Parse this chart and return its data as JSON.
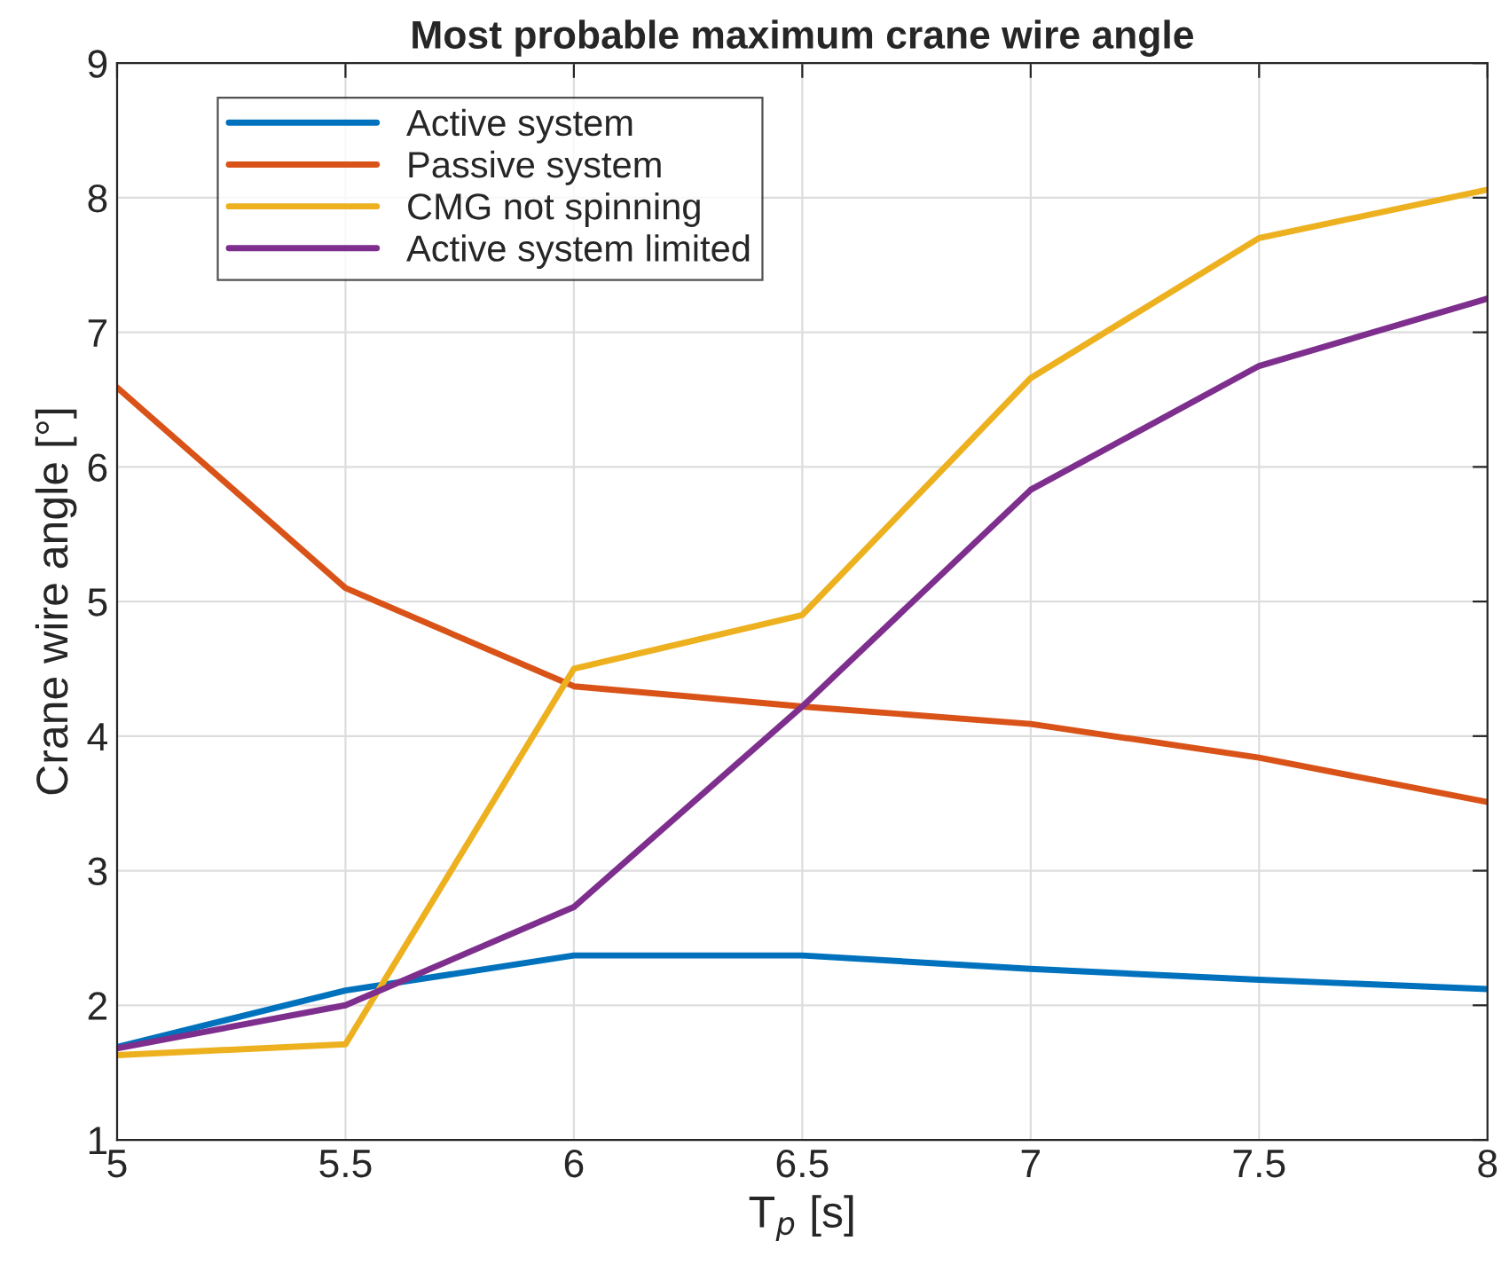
{
  "chart_data": {
    "type": "line",
    "title": "Most probable maximum crane wire angle",
    "xlabel": "T$_{p}$ [s]",
    "ylabel": "Crane wire angle [°]",
    "x": [
      5,
      5.5,
      6,
      6.5,
      7,
      7.5,
      8
    ],
    "series": [
      {
        "name": "Active system",
        "color": "#0072bd",
        "values": [
          1.69,
          2.11,
          2.37,
          2.37,
          2.27,
          2.19,
          2.12
        ]
      },
      {
        "name": "Passive system",
        "color": "#d95319",
        "values": [
          6.59,
          5.1,
          4.37,
          4.22,
          4.09,
          3.84,
          3.51
        ]
      },
      {
        "name": "CMG not spinning",
        "color": "#edb120",
        "values": [
          1.63,
          1.71,
          4.5,
          4.9,
          6.66,
          7.7,
          8.06
        ]
      },
      {
        "name": "Active system limited",
        "color": "#7e2f8e",
        "values": [
          1.68,
          2.0,
          2.73,
          4.22,
          5.83,
          6.75,
          7.25
        ]
      }
    ],
    "xlim": [
      5,
      8
    ],
    "xticks": [
      5,
      5.5,
      6,
      6.5,
      7,
      7.5,
      8
    ],
    "ylim": [
      1,
      9
    ],
    "yticks": [
      1,
      2,
      3,
      4,
      5,
      6,
      7,
      8,
      9
    ],
    "grid": true,
    "legend": "top left",
    "line_style": "solid",
    "marker": "none"
  }
}
